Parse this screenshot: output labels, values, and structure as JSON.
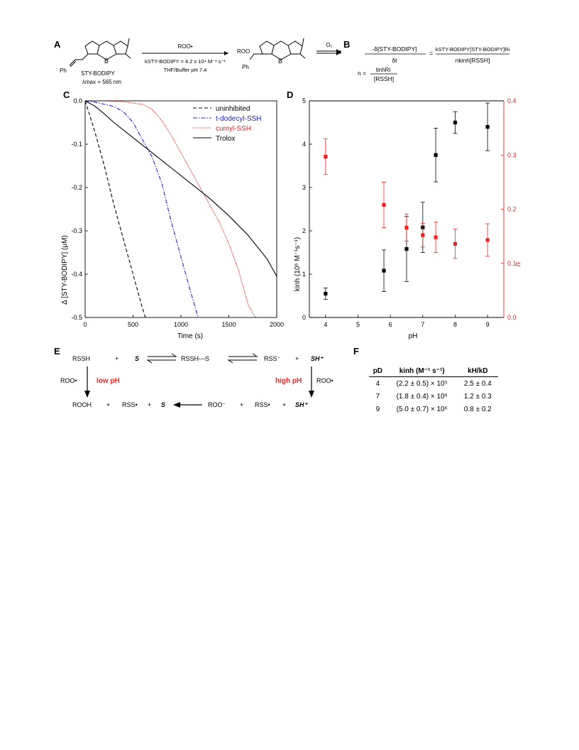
{
  "panels": {
    "A": "A",
    "B": "B",
    "C": "C",
    "D": "D",
    "E": "E",
    "F": "F"
  },
  "scheme_a": {
    "compound_name": "STY-BODIPY",
    "lambda": "λmax = 565 nm",
    "ph_label": "Ph",
    "reagent": "ROO•",
    "rate": "kSTY-BODIPY = 4.2 x 10⁴ M⁻¹ s⁻¹",
    "conditions": "THF/Buffer pH 7.4",
    "product_roo": "ROO",
    "product_ph": "Ph",
    "o2": "O₂"
  },
  "equation_b": {
    "lhs_num": "-δ[STY-BODIPY]",
    "lhs_den": "δt",
    "rhs_num": "kSTY-BODIPY[STY-BODIPY]Ri",
    "rhs_den": "nkinh[RSSH]",
    "n_lhs": "n =",
    "n_num": "tinhRi",
    "n_den": "[RSSH]"
  },
  "chart_data": [
    {
      "type": "line",
      "panel": "C",
      "xlabel": "Time (s)",
      "ylabel": "Δ [STY-BODIPY] (μM)",
      "xlim": [
        0,
        2000
      ],
      "ylim": [
        -0.5,
        0.0
      ],
      "xticks": [
        0,
        500,
        1000,
        1500,
        2000
      ],
      "yticks": [
        0.0,
        -0.1,
        -0.2,
        -0.3,
        -0.4,
        -0.5
      ],
      "legend_position": "top-right",
      "series": [
        {
          "name": "uninhibited",
          "color": "#000000",
          "dash": "dashed",
          "x": [
            0,
            100,
            200,
            300,
            400,
            500,
            600,
            630
          ],
          "y": [
            0.0,
            -0.07,
            -0.15,
            -0.24,
            -0.32,
            -0.4,
            -0.48,
            -0.5
          ]
        },
        {
          "name": "t-dodecyl-SSH",
          "color": "#2222dd",
          "dash": "dashdot",
          "x": [
            0,
            100,
            200,
            300,
            400,
            500,
            600,
            700,
            800,
            900,
            1000,
            1100,
            1180
          ],
          "y": [
            0.0,
            -0.003,
            -0.008,
            -0.013,
            -0.025,
            -0.05,
            -0.09,
            -0.13,
            -0.19,
            -0.28,
            -0.36,
            -0.44,
            -0.5
          ]
        },
        {
          "name": "cumyl-SSH",
          "color": "#ee2222",
          "dash": "dotted",
          "x": [
            0,
            200,
            400,
            600,
            700,
            800,
            900,
            1000,
            1100,
            1200,
            1300,
            1400,
            1500,
            1600,
            1650,
            1700,
            1750,
            1780
          ],
          "y": [
            0.0,
            0.0,
            -0.002,
            -0.008,
            -0.02,
            -0.045,
            -0.08,
            -0.12,
            -0.16,
            -0.2,
            -0.24,
            -0.28,
            -0.33,
            -0.39,
            -0.43,
            -0.47,
            -0.49,
            -0.5
          ]
        },
        {
          "name": "Trolox",
          "color": "#000000",
          "dash": "solid",
          "x": [
            0,
            100,
            200,
            300,
            500,
            700,
            900,
            1100,
            1300,
            1500,
            1700,
            1900,
            2000
          ],
          "y": [
            0.0,
            -0.012,
            -0.03,
            -0.05,
            -0.085,
            -0.12,
            -0.155,
            -0.19,
            -0.225,
            -0.265,
            -0.31,
            -0.365,
            -0.405
          ]
        }
      ]
    },
    {
      "type": "scatter",
      "panel": "D",
      "xlabel": "pH",
      "ylabel": "kinh (10⁶ M⁻¹s⁻¹)",
      "y2label": "n",
      "xlim": [
        3.5,
        9.5
      ],
      "ylim": [
        0,
        5
      ],
      "y2lim": [
        0,
        0.4
      ],
      "xticks": [
        4,
        5,
        6,
        7,
        8,
        9
      ],
      "yticks": [
        0,
        1,
        2,
        3,
        4,
        5
      ],
      "y2ticks": [
        0.0,
        0.1,
        0.2,
        0.3,
        0.4
      ],
      "series": [
        {
          "name": "kinh",
          "axis": "left",
          "color": "#000000",
          "x": [
            4.0,
            5.8,
            6.5,
            7.0,
            7.4,
            8.0,
            9.0
          ],
          "y": [
            0.55,
            1.08,
            1.58,
            2.08,
            3.75,
            4.5,
            4.4
          ],
          "err": [
            0.13,
            0.48,
            0.75,
            0.58,
            0.62,
            0.25,
            0.55
          ]
        },
        {
          "name": "n",
          "axis": "right",
          "color": "#ee2222",
          "x": [
            4.0,
            5.8,
            6.5,
            7.0,
            7.4,
            8.0,
            9.0
          ],
          "y": [
            0.297,
            0.208,
            0.166,
            0.152,
            0.148,
            0.136,
            0.143
          ],
          "err": [
            0.033,
            0.042,
            0.025,
            0.022,
            0.028,
            0.027,
            0.03
          ]
        }
      ]
    }
  ],
  "scheme_e": {
    "rssh": "RSSH",
    "plus": "+",
    "s": "S",
    "complex": "RSSH---S",
    "rss_minus": "RSS⁻",
    "sh_plus": "SH⁺",
    "roo_rad": "ROO•",
    "low_ph": "low pH",
    "high_ph": "high pH",
    "rooh": "ROOH",
    "rss_rad": "RSS•",
    "roo_minus": "ROO⁻"
  },
  "table_f": {
    "headers": [
      "pD",
      "kinh (M⁻¹ s⁻¹)",
      "kH/kD"
    ],
    "rows": [
      [
        "4",
        "(2.2 ± 0.5) × 10⁵",
        "2.5 ± 0.4"
      ],
      [
        "7",
        "(1.8 ± 0.4) × 10⁶",
        "1.2 ± 0.3"
      ],
      [
        "9",
        "(5.0 ± 0.7) × 10⁶",
        "0.8 ± 0.2"
      ]
    ]
  }
}
